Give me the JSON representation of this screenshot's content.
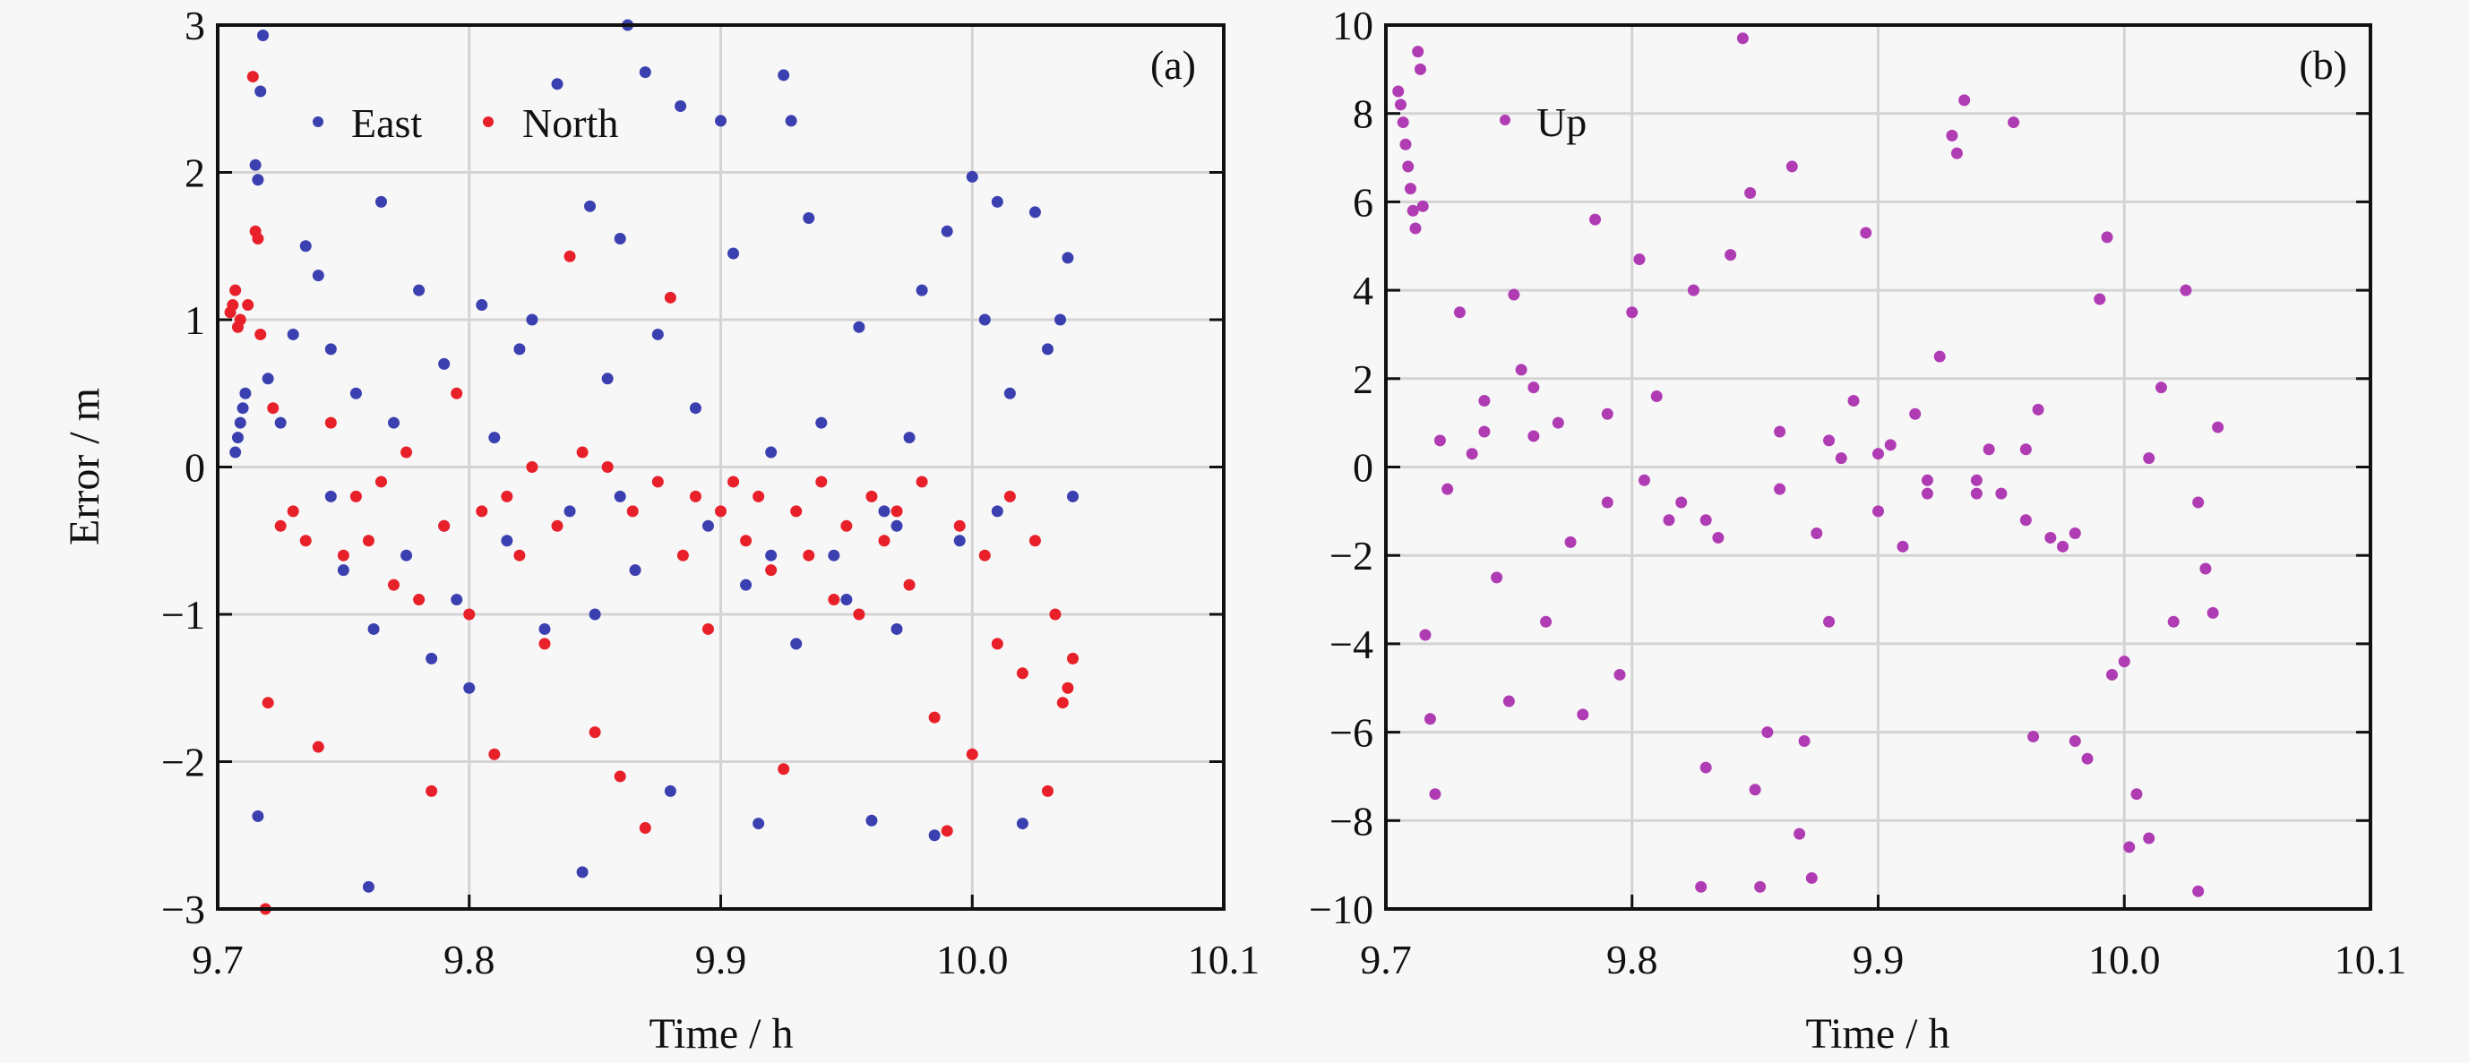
{
  "chart_data": [
    {
      "type": "scatter",
      "panel_label": "(a)",
      "xlabel": "Time / h",
      "ylabel": "Error / m",
      "xlim": [
        9.7,
        10.1
      ],
      "ylim": [
        -3,
        3
      ],
      "xticks": [
        "9.7",
        "9.8",
        "9.9",
        "10.0",
        "10.1"
      ],
      "yticks": [
        "-3",
        "-2",
        "-1",
        "0",
        "1",
        "2",
        "3"
      ],
      "grid": true,
      "legend_position": "top-left",
      "series": [
        {
          "name": "East",
          "color": "#3b40b0",
          "points": [
            [
              9.707,
              0.1
            ],
            [
              9.708,
              0.2
            ],
            [
              9.709,
              0.3
            ],
            [
              9.71,
              0.4
            ],
            [
              9.711,
              0.5
            ],
            [
              9.715,
              2.05
            ],
            [
              9.716,
              1.95
            ],
            [
              9.718,
              2.93
            ],
            [
              9.717,
              2.55
            ],
            [
              9.716,
              -2.37
            ],
            [
              9.72,
              0.6
            ],
            [
              9.725,
              0.3
            ],
            [
              9.73,
              0.9
            ],
            [
              9.735,
              1.5
            ],
            [
              9.74,
              1.3
            ],
            [
              9.745,
              0.8
            ],
            [
              9.75,
              -0.7
            ],
            [
              9.755,
              0.5
            ],
            [
              9.76,
              -2.85
            ],
            [
              9.762,
              -1.1
            ],
            [
              9.765,
              1.8
            ],
            [
              9.77,
              0.3
            ],
            [
              9.775,
              -0.6
            ],
            [
              9.78,
              1.2
            ],
            [
              9.785,
              -1.3
            ],
            [
              9.79,
              0.7
            ],
            [
              9.795,
              -0.9
            ],
            [
              9.8,
              -1.5
            ],
            [
              9.805,
              1.1
            ],
            [
              9.81,
              0.2
            ],
            [
              9.815,
              -0.5
            ],
            [
              9.82,
              0.8
            ],
            [
              9.825,
              1.0
            ],
            [
              9.83,
              -1.1
            ],
            [
              9.835,
              2.6
            ],
            [
              9.84,
              -0.3
            ],
            [
              9.845,
              -2.75
            ],
            [
              9.848,
              1.77
            ],
            [
              9.85,
              -1.0
            ],
            [
              9.855,
              0.6
            ],
            [
              9.86,
              1.55
            ],
            [
              9.863,
              3.0
            ],
            [
              9.866,
              -0.7
            ],
            [
              9.87,
              2.68
            ],
            [
              9.875,
              0.9
            ],
            [
              9.88,
              -2.2
            ],
            [
              9.884,
              2.45
            ],
            [
              9.89,
              0.4
            ],
            [
              9.895,
              -0.4
            ],
            [
              9.9,
              2.35
            ],
            [
              9.905,
              1.45
            ],
            [
              9.91,
              -0.8
            ],
            [
              9.915,
              -2.42
            ],
            [
              9.92,
              0.1
            ],
            [
              9.925,
              2.66
            ],
            [
              9.928,
              2.35
            ],
            [
              9.93,
              -1.2
            ],
            [
              9.935,
              1.69
            ],
            [
              9.94,
              0.3
            ],
            [
              9.945,
              -0.6
            ],
            [
              9.95,
              -0.9
            ],
            [
              9.955,
              0.95
            ],
            [
              9.96,
              -2.4
            ],
            [
              9.965,
              -0.3
            ],
            [
              9.97,
              -1.1
            ],
            [
              9.975,
              0.2
            ],
            [
              9.98,
              1.2
            ],
            [
              9.985,
              -2.5
            ],
            [
              9.99,
              1.6
            ],
            [
              9.995,
              -0.5
            ],
            [
              10.0,
              1.97
            ],
            [
              10.005,
              1.0
            ],
            [
              10.01,
              1.8
            ],
            [
              10.015,
              0.5
            ],
            [
              10.02,
              -2.42
            ],
            [
              10.025,
              1.73
            ],
            [
              10.03,
              0.8
            ],
            [
              10.035,
              1.0
            ],
            [
              10.038,
              1.42
            ],
            [
              10.04,
              -0.2
            ],
            [
              9.745,
              -0.2
            ],
            [
              9.79,
              -0.4
            ],
            [
              9.86,
              -0.2
            ],
            [
              9.92,
              -0.6
            ],
            [
              9.97,
              -0.4
            ],
            [
              10.01,
              -0.3
            ]
          ]
        },
        {
          "name": "North",
          "color": "#e8202a",
          "points": [
            [
              9.705,
              1.05
            ],
            [
              9.706,
              1.1
            ],
            [
              9.707,
              1.2
            ],
            [
              9.708,
              0.95
            ],
            [
              9.709,
              1.0
            ],
            [
              9.712,
              1.1
            ],
            [
              9.714,
              2.65
            ],
            [
              9.715,
              1.6
            ],
            [
              9.716,
              1.55
            ],
            [
              9.717,
              0.9
            ],
            [
              9.719,
              -3.0
            ],
            [
              9.72,
              -1.6
            ],
            [
              9.722,
              0.4
            ],
            [
              9.725,
              -0.4
            ],
            [
              9.73,
              -0.3
            ],
            [
              9.735,
              -0.5
            ],
            [
              9.74,
              -1.9
            ],
            [
              9.745,
              0.3
            ],
            [
              9.75,
              -0.6
            ],
            [
              9.755,
              -0.2
            ],
            [
              9.76,
              -0.5
            ],
            [
              9.765,
              -0.1
            ],
            [
              9.77,
              -0.8
            ],
            [
              9.775,
              0.1
            ],
            [
              9.78,
              -0.9
            ],
            [
              9.785,
              -2.2
            ],
            [
              9.79,
              -0.4
            ],
            [
              9.795,
              0.5
            ],
            [
              9.8,
              -1.0
            ],
            [
              9.805,
              -0.3
            ],
            [
              9.81,
              -1.95
            ],
            [
              9.815,
              -0.2
            ],
            [
              9.82,
              -0.6
            ],
            [
              9.825,
              0.0
            ],
            [
              9.83,
              -1.2
            ],
            [
              9.835,
              -0.4
            ],
            [
              9.84,
              1.43
            ],
            [
              9.845,
              0.1
            ],
            [
              9.85,
              -1.8
            ],
            [
              9.855,
              0.0
            ],
            [
              9.86,
              -2.1
            ],
            [
              9.865,
              -0.3
            ],
            [
              9.87,
              -2.45
            ],
            [
              9.875,
              -0.1
            ],
            [
              9.88,
              1.15
            ],
            [
              9.885,
              -0.6
            ],
            [
              9.89,
              -0.2
            ],
            [
              9.895,
              -1.1
            ],
            [
              9.9,
              -0.3
            ],
            [
              9.905,
              -0.1
            ],
            [
              9.91,
              -0.5
            ],
            [
              9.915,
              -0.2
            ],
            [
              9.92,
              -0.7
            ],
            [
              9.925,
              -2.05
            ],
            [
              9.93,
              -0.3
            ],
            [
              9.935,
              -0.6
            ],
            [
              9.94,
              -0.1
            ],
            [
              9.945,
              -0.9
            ],
            [
              9.95,
              -0.4
            ],
            [
              9.955,
              -1.0
            ],
            [
              9.96,
              -0.2
            ],
            [
              9.965,
              -0.5
            ],
            [
              9.97,
              -0.3
            ],
            [
              9.975,
              -0.8
            ],
            [
              9.98,
              -0.1
            ],
            [
              9.985,
              -1.7
            ],
            [
              9.99,
              -2.47
            ],
            [
              9.995,
              -0.4
            ],
            [
              10.0,
              -1.95
            ],
            [
              10.005,
              -0.6
            ],
            [
              10.01,
              -1.2
            ],
            [
              10.015,
              -0.2
            ],
            [
              10.02,
              -1.4
            ],
            [
              10.025,
              -0.5
            ],
            [
              10.03,
              -2.2
            ],
            [
              10.033,
              -1.0
            ],
            [
              10.036,
              -1.6
            ],
            [
              10.038,
              -1.5
            ],
            [
              10.04,
              -1.3
            ]
          ]
        }
      ]
    },
    {
      "type": "scatter",
      "panel_label": "(b)",
      "xlabel": "Time / h",
      "ylabel": "",
      "xlim": [
        9.7,
        10.1
      ],
      "ylim": [
        -10,
        10
      ],
      "xticks": [
        "9.7",
        "9.8",
        "9.9",
        "10.0",
        "10.1"
      ],
      "yticks": [
        "-10",
        "-8",
        "-6",
        "-4",
        "-2",
        "0",
        "2",
        "4",
        "6",
        "8",
        "10"
      ],
      "grid": true,
      "legend_position": "top-left",
      "series": [
        {
          "name": "Up",
          "color": "#b03cb4",
          "points": [
            [
              9.705,
              8.5
            ],
            [
              9.706,
              8.2
            ],
            [
              9.707,
              7.8
            ],
            [
              9.708,
              7.3
            ],
            [
              9.709,
              6.8
            ],
            [
              9.71,
              6.3
            ],
            [
              9.711,
              5.8
            ],
            [
              9.712,
              5.4
            ],
            [
              9.713,
              9.4
            ],
            [
              9.714,
              9.0
            ],
            [
              9.715,
              5.9
            ],
            [
              9.716,
              -3.8
            ],
            [
              9.718,
              -5.7
            ],
            [
              9.72,
              -7.4
            ],
            [
              9.722,
              0.6
            ],
            [
              9.725,
              -0.5
            ],
            [
              9.73,
              3.5
            ],
            [
              9.735,
              0.3
            ],
            [
              9.74,
              1.5
            ],
            [
              9.745,
              -2.5
            ],
            [
              9.75,
              -5.3
            ],
            [
              9.752,
              3.9
            ],
            [
              9.755,
              2.2
            ],
            [
              9.76,
              0.7
            ],
            [
              9.765,
              -3.5
            ],
            [
              9.77,
              1.0
            ],
            [
              9.775,
              -1.7
            ],
            [
              9.78,
              -5.6
            ],
            [
              9.785,
              5.6
            ],
            [
              9.79,
              1.2
            ],
            [
              9.795,
              -4.7
            ],
            [
              9.8,
              3.5
            ],
            [
              9.803,
              4.7
            ],
            [
              9.805,
              -0.3
            ],
            [
              9.81,
              1.6
            ],
            [
              9.815,
              -1.2
            ],
            [
              9.82,
              -0.8
            ],
            [
              9.825,
              4.0
            ],
            [
              9.828,
              -9.5
            ],
            [
              9.83,
              -6.8
            ],
            [
              9.835,
              -1.6
            ],
            [
              9.84,
              4.8
            ],
            [
              9.845,
              9.7
            ],
            [
              9.848,
              6.2
            ],
            [
              9.85,
              -7.3
            ],
            [
              9.852,
              -9.5
            ],
            [
              9.855,
              -6.0
            ],
            [
              9.86,
              0.8
            ],
            [
              9.865,
              6.8
            ],
            [
              9.868,
              -8.3
            ],
            [
              9.87,
              -6.2
            ],
            [
              9.873,
              -9.3
            ],
            [
              9.875,
              -1.5
            ],
            [
              9.88,
              -3.5
            ],
            [
              9.885,
              0.2
            ],
            [
              9.89,
              1.5
            ],
            [
              9.895,
              5.3
            ],
            [
              9.9,
              -1.0
            ],
            [
              9.905,
              0.5
            ],
            [
              9.91,
              -1.8
            ],
            [
              9.915,
              1.2
            ],
            [
              9.92,
              -0.6
            ],
            [
              9.925,
              2.5
            ],
            [
              9.93,
              7.5
            ],
            [
              9.932,
              7.1
            ],
            [
              9.935,
              8.3
            ],
            [
              9.94,
              -0.3
            ],
            [
              9.945,
              0.4
            ],
            [
              9.95,
              -0.6
            ],
            [
              9.955,
              7.8
            ],
            [
              9.96,
              -1.2
            ],
            [
              9.963,
              -6.1
            ],
            [
              9.965,
              1.3
            ],
            [
              9.97,
              -1.6
            ],
            [
              9.975,
              -1.8
            ],
            [
              9.98,
              -6.2
            ],
            [
              9.985,
              -6.6
            ],
            [
              9.99,
              3.8
            ],
            [
              9.993,
              5.2
            ],
            [
              9.995,
              -4.7
            ],
            [
              10.0,
              -4.4
            ],
            [
              10.002,
              -8.6
            ],
            [
              10.005,
              -7.4
            ],
            [
              10.01,
              -8.4
            ],
            [
              10.015,
              1.8
            ],
            [
              10.02,
              -3.5
            ],
            [
              10.025,
              4.0
            ],
            [
              10.03,
              -9.6
            ],
            [
              10.033,
              -2.3
            ],
            [
              10.036,
              -3.3
            ],
            [
              10.038,
              0.9
            ],
            [
              9.74,
              0.8
            ],
            [
              9.76,
              1.8
            ],
            [
              9.79,
              -0.8
            ],
            [
              9.83,
              -1.2
            ],
            [
              9.86,
              -0.5
            ],
            [
              9.88,
              0.6
            ],
            [
              9.9,
              0.3
            ],
            [
              9.92,
              -0.3
            ],
            [
              9.94,
              -0.6
            ],
            [
              9.96,
              0.4
            ],
            [
              9.98,
              -1.5
            ],
            [
              10.01,
              0.2
            ],
            [
              10.03,
              -0.8
            ]
          ]
        }
      ]
    }
  ]
}
